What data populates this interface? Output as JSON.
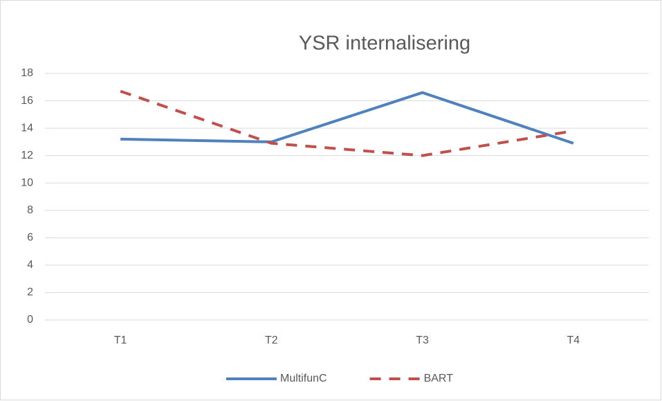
{
  "chart_data": {
    "type": "line",
    "title": "YSR internalisering",
    "categories": [
      "T1",
      "T2",
      "T3",
      "T4"
    ],
    "series": [
      {
        "name": "MultifunC",
        "color": "#4f81bd",
        "dashed": false,
        "values": [
          13.2,
          13.0,
          16.6,
          12.9
        ]
      },
      {
        "name": "BART",
        "color": "#c0504d",
        "dashed": true,
        "values": [
          16.7,
          12.9,
          12.0,
          13.8
        ]
      }
    ],
    "ylim": [
      0,
      18
    ],
    "yticks": [
      0,
      2,
      4,
      6,
      8,
      10,
      12,
      14,
      16,
      18
    ],
    "grid": true,
    "legend": "bottom"
  }
}
